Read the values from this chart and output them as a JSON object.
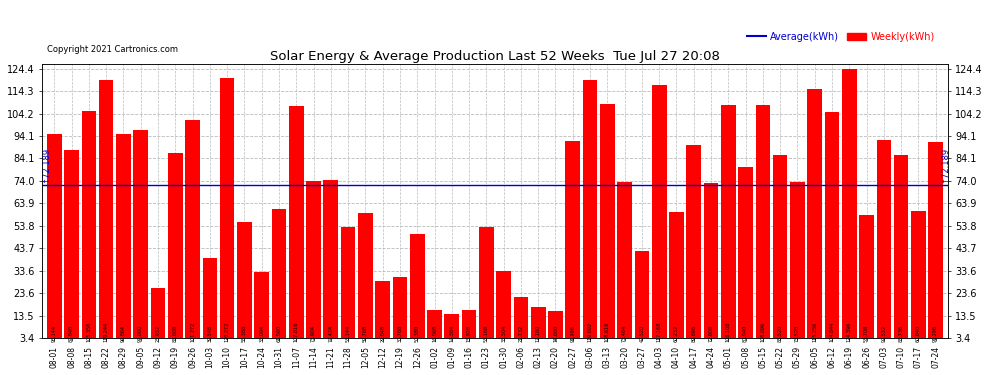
{
  "title": "Solar Energy & Average Production Last 52 Weeks  Tue Jul 27 20:08",
  "copyright": "Copyright 2021 Cartronics.com",
  "average_label": "Average(kWh)",
  "weekly_label": "Weekly(kWh)",
  "average_value": 72.189,
  "background_color": "#ffffff",
  "bar_color": "#ff0000",
  "average_line_color": "#0000cc",
  "ylim_min": 3.4,
  "ylim_max": 124.4,
  "yticks": [
    3.4,
    13.5,
    23.6,
    33.6,
    43.7,
    53.8,
    63.9,
    74.0,
    84.1,
    94.1,
    104.2,
    114.3,
    124.4
  ],
  "categories": [
    "08-01",
    "08-08",
    "08-15",
    "08-22",
    "08-29",
    "09-05",
    "09-12",
    "09-19",
    "09-26",
    "10-03",
    "10-10",
    "10-17",
    "10-24",
    "10-31",
    "11-07",
    "11-14",
    "11-21",
    "11-28",
    "12-05",
    "12-12",
    "12-19",
    "12-26",
    "01-02",
    "01-09",
    "01-16",
    "01-23",
    "01-30",
    "02-06",
    "02-13",
    "02-20",
    "02-27",
    "03-06",
    "03-13",
    "03-20",
    "03-27",
    "04-03",
    "04-10",
    "04-17",
    "04-24",
    "05-01",
    "05-08",
    "05-15",
    "05-22",
    "05-29",
    "06-05",
    "06-12",
    "06-19",
    "06-26",
    "07-03",
    "07-10",
    "07-17",
    "07-24"
  ],
  "bar_values": [
    95.144,
    87.84,
    105.356,
    119.244,
    94.864,
    97.0,
    25.932,
    86.608,
    101.272,
    39.548,
    120.272,
    55.388,
    33.004,
    61.56,
    107.816,
    73.904,
    74.424,
    53.144,
    59.768,
    29.048,
    30.768,
    50.38,
    16.068,
    14.384,
    15.928,
    53.168,
    33.504,
    21.732,
    17.18,
    15.6,
    91.996,
    119.092,
    108.616,
    73.464,
    42.52,
    117.168,
    60.232,
    89.896,
    72.908,
    108.108,
    80.04,
    108.096,
    85.52,
    73.52,
    115.256,
    104.844,
    124.396,
    58.708,
    92.532,
    85.736,
    60.64,
    91.296
  ]
}
